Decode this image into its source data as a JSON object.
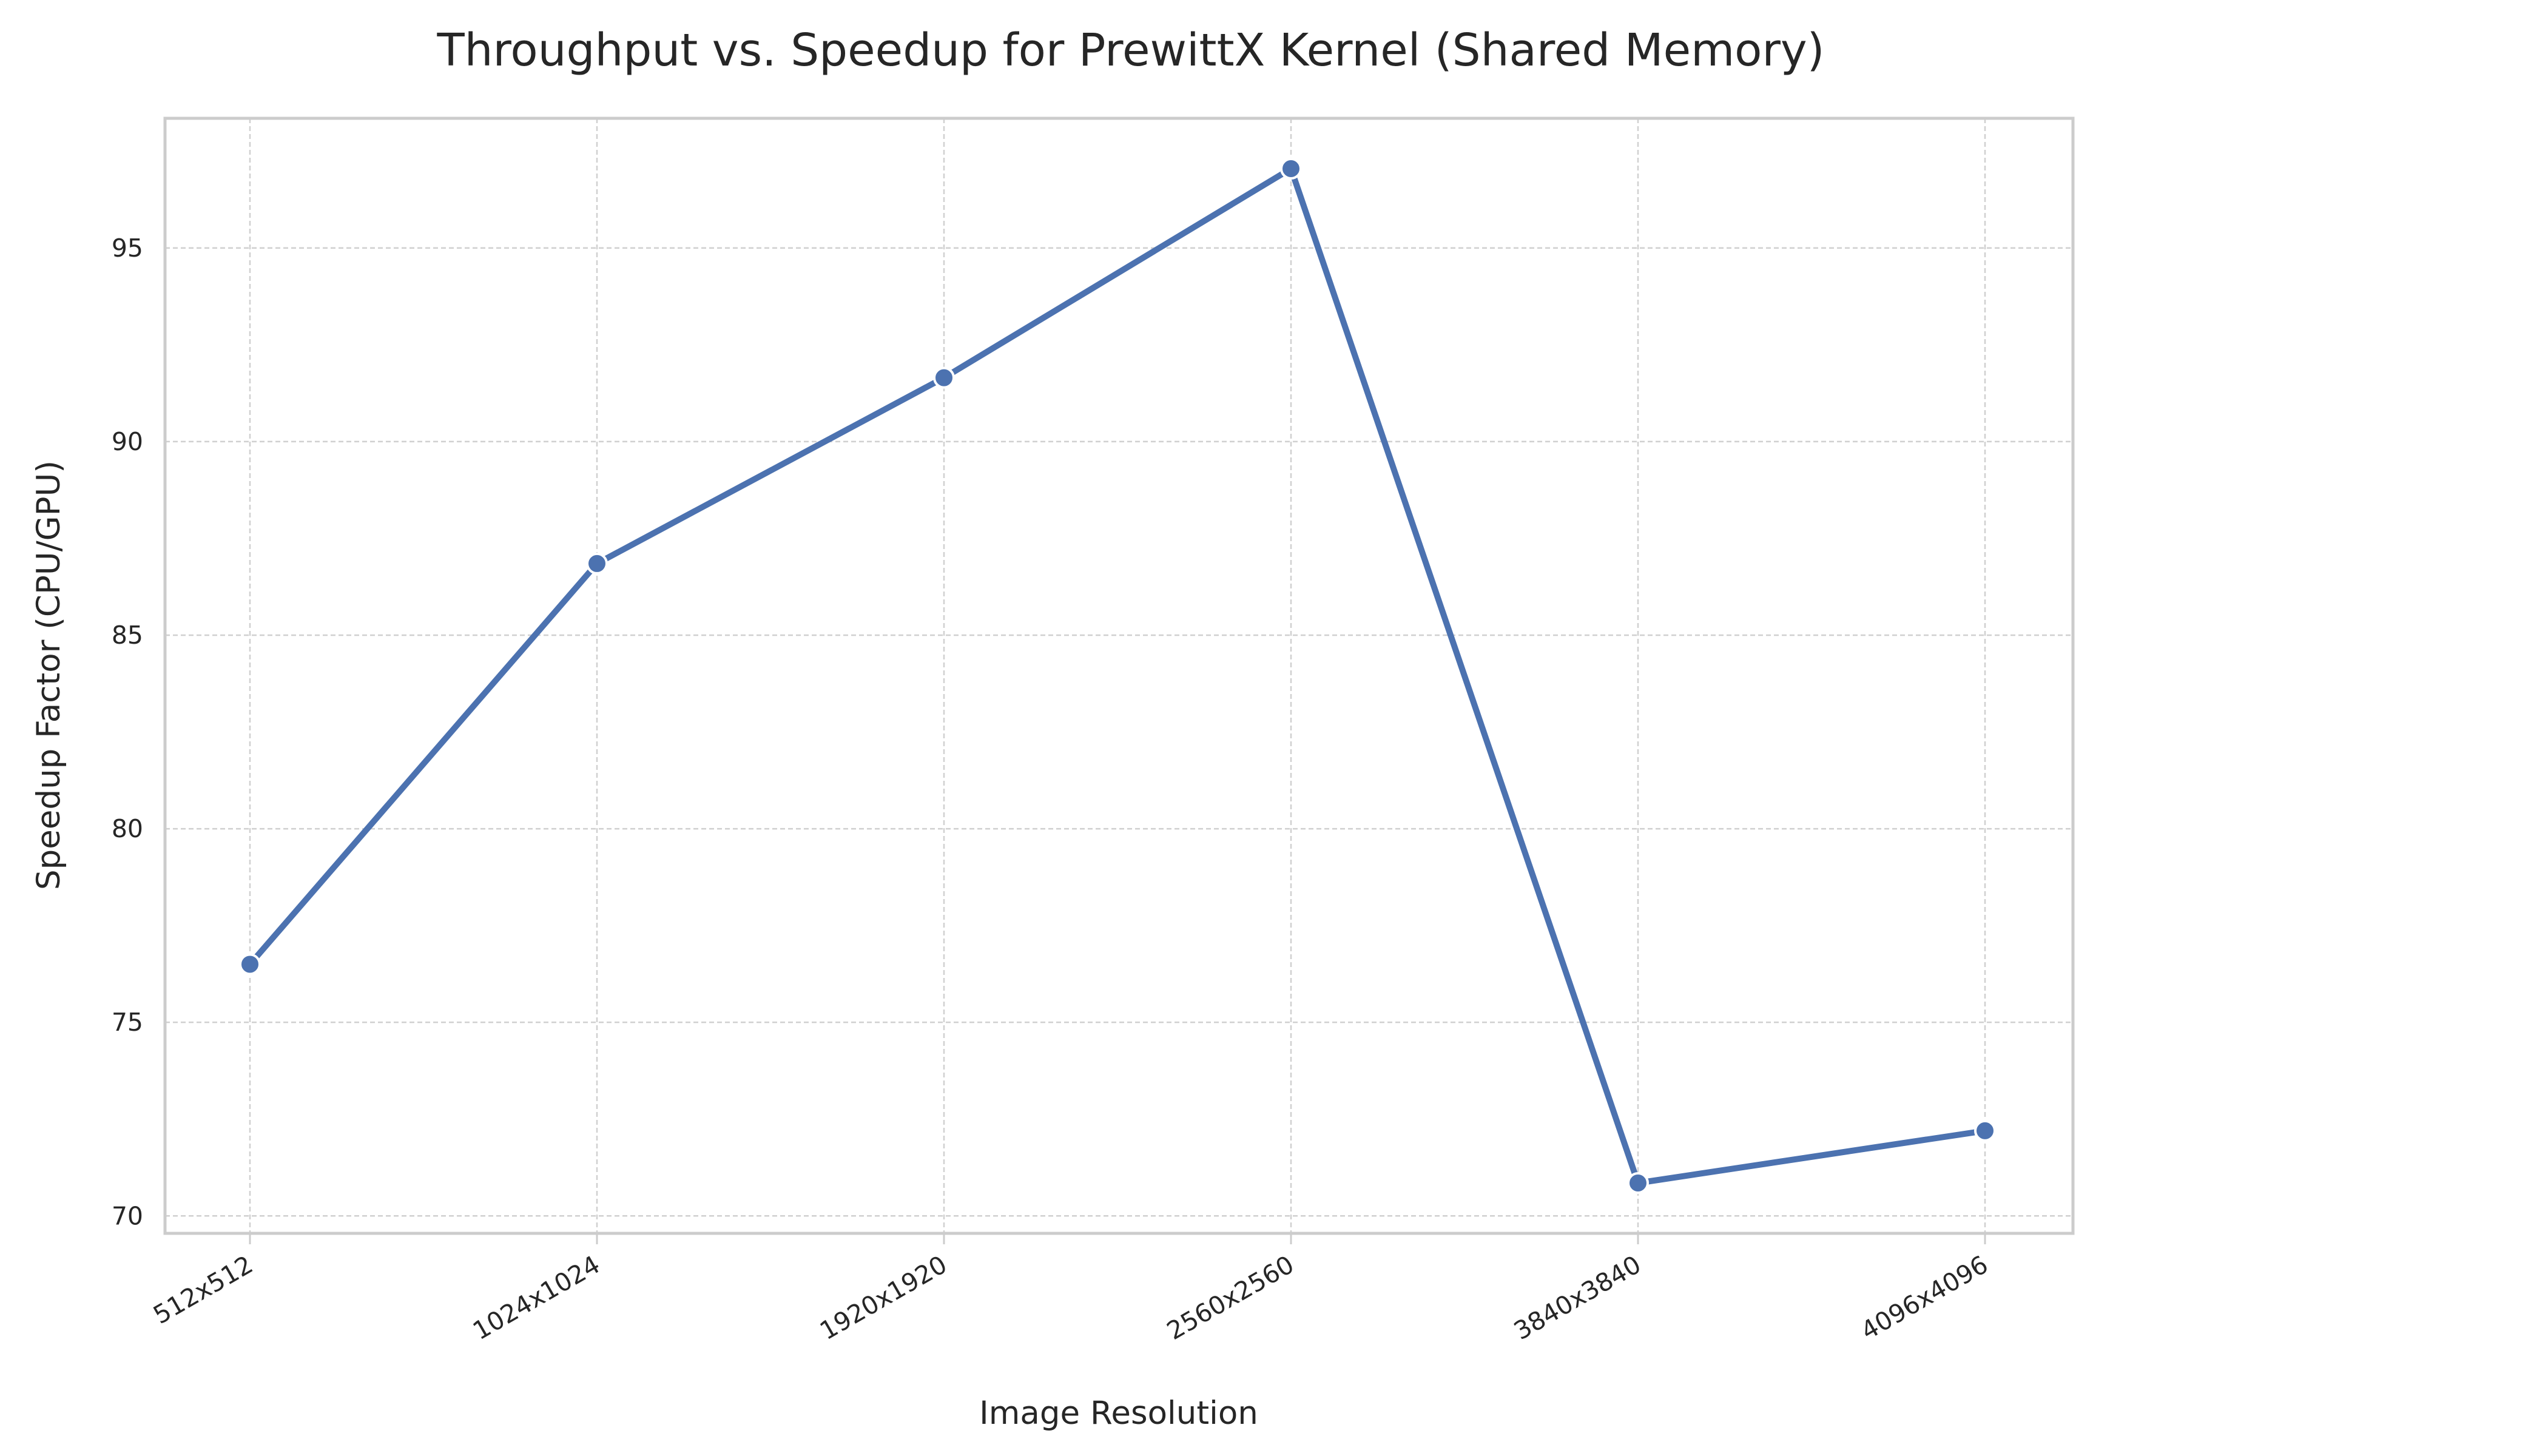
{
  "chart_data": {
    "type": "line",
    "title": "Throughput vs. Speedup for PrewittX Kernel (Shared Memory)",
    "xlabel": "Image Resolution",
    "ylabel": "Speedup Factor (CPU/GPU)",
    "categories": [
      "512x512",
      "1024x1024",
      "1920x1920",
      "2560x2560",
      "3840x3840",
      "4096x4096"
    ],
    "series": [
      {
        "values": [
          76.5,
          86.85,
          91.65,
          97.05,
          70.85,
          72.2
        ],
        "color": "#4c72b0"
      }
    ],
    "yticks": [
      70,
      75,
      80,
      85,
      90,
      95
    ],
    "ylim": [
      69.55,
      98.35
    ],
    "grid": true,
    "legend": "none"
  }
}
